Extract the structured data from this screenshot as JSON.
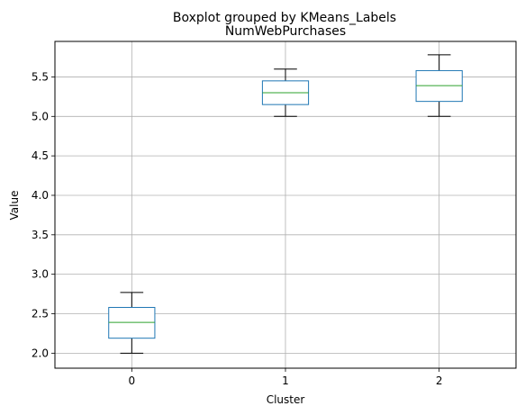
{
  "chart_data": {
    "type": "boxplot",
    "suptitle": "Boxplot grouped by KMeans_Labels",
    "title": "NumWebPurchases",
    "xlabel": "Cluster",
    "ylabel": "Value",
    "categories": [
      "0",
      "1",
      "2"
    ],
    "ylim": [
      1.81,
      5.95
    ],
    "yticks": [
      "2.0",
      "2.5",
      "3.0",
      "3.5",
      "4.0",
      "4.5",
      "5.0",
      "5.5"
    ],
    "grid": true,
    "boxes": [
      {
        "label": "0",
        "whisker_low": 2.0,
        "q1": 2.19,
        "median": 2.39,
        "q3": 2.58,
        "whisker_high": 2.77
      },
      {
        "label": "1",
        "whisker_low": 5.0,
        "q1": 5.15,
        "median": 5.3,
        "q3": 5.45,
        "whisker_high": 5.6
      },
      {
        "label": "2",
        "whisker_low": 5.0,
        "q1": 5.19,
        "median": 5.39,
        "q3": 5.58,
        "whisker_high": 5.78
      }
    ],
    "colors": {
      "box": "#1f77b4",
      "median": "#2ca02c",
      "whisker": "#000000",
      "grid": "#b0b0b0"
    }
  }
}
